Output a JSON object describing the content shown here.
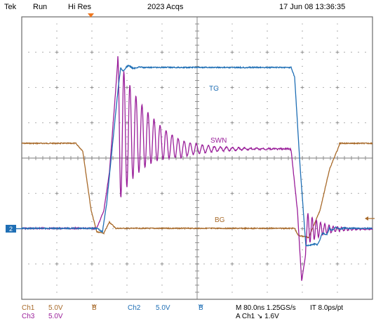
{
  "header": {
    "brand": "Tek",
    "mode": "Run",
    "acq_mode": "Hi Res",
    "acq_count": "2023 Acqs",
    "datetime": "17 Jun 08 13:36:35"
  },
  "traces": {
    "tg_label": "TG",
    "swn_label": "SWN",
    "bg_label": "BG",
    "ch2_marker": "2"
  },
  "footer": {
    "ch1_name": "Ch1",
    "ch1_scale": "5.0V",
    "ch3_name": "Ch3",
    "ch3_scale": "5.0V",
    "bw1_b": "B",
    "bw1_w": "W",
    "ch2_name": "Ch2",
    "ch2_scale": "5.0V",
    "bw2_b": "B",
    "bw2_w": "W",
    "timebase": "M 80.0ns  1.25GS/s",
    "record": "IT 8.0ps/pt",
    "trigger": "A  Ch1  ↘  1.6V"
  },
  "colors": {
    "ch1": "#a86a2a",
    "ch2": "#1f6fb5",
    "ch3": "#9a1f9a",
    "grid": "#7a7a7a",
    "trigger_marker": "#f07820"
  }
}
